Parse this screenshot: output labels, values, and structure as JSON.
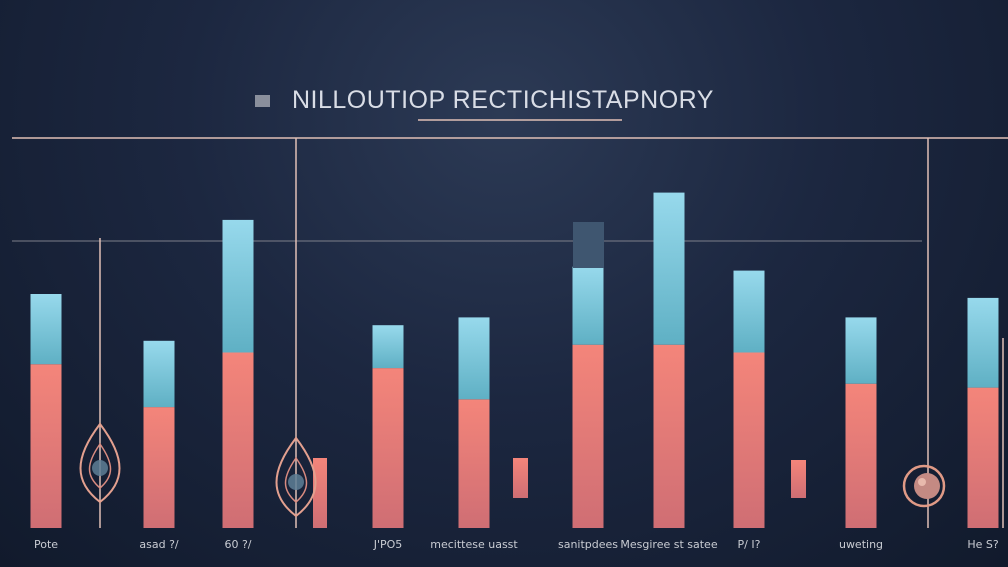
{
  "chart_data": {
    "type": "bar",
    "title": "NILLOUTIOP RECTICHISTAPNORY",
    "xlabel": "",
    "ylabel": "",
    "ylim": [
      0,
      100
    ],
    "grid": false,
    "legend": "none",
    "categories": [
      "Pote",
      "asad ?/",
      "60 ?/",
      "J'PO5",
      "mecittese uasst",
      "sanitpdees",
      "Mesgiree st satee",
      "P/ I?",
      "uweting",
      "He S?"
    ],
    "series": [
      {
        "values": [
          42,
          31,
          45,
          41,
          33,
          47,
          47,
          45,
          37,
          36
        ]
      },
      {
        "values": [
          18,
          17,
          34,
          11,
          21,
          20,
          39,
          21,
          17,
          23
        ]
      }
    ],
    "marker_categories": [
      "Pote",
      "asad ?/",
      "P/ I?"
    ],
    "colors": {
      "lower_top": "#f08174",
      "lower_bottom": "#d46f72",
      "upper_top": "#93d6e9",
      "upper_bottom": "#5fb2c6",
      "line": "#e0bfb6",
      "title_square": "#8a8f9c"
    }
  }
}
